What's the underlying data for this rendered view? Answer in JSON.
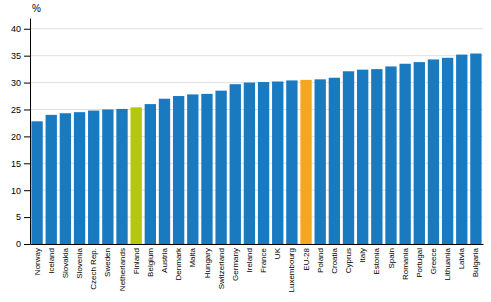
{
  "chart_data": {
    "type": "bar",
    "ylabel": "%",
    "categories": [
      "Norway",
      "Iceland",
      "Slovakia",
      "Slovenia",
      "Czech Rep.",
      "Sweden",
      "Netherlands",
      "Finland",
      "Belgium",
      "Austria",
      "Denmark",
      "Malta",
      "Hungary",
      "Switzerland",
      "Germany",
      "Ireland",
      "France",
      "UK",
      "Luxembourg",
      "EU-28",
      "Poland",
      "Croatia",
      "Cyprus",
      "Italy",
      "Estonia",
      "Spain",
      "Romania",
      "Portugal",
      "Greece",
      "Lithuania",
      "Latvia",
      "Bulgaria"
    ],
    "values": [
      22.8,
      24.0,
      24.3,
      24.5,
      24.8,
      25.0,
      25.1,
      25.4,
      26.0,
      27.0,
      27.5,
      27.8,
      27.9,
      28.5,
      29.7,
      30.0,
      30.1,
      30.2,
      30.4,
      30.5,
      30.6,
      30.9,
      32.1,
      32.4,
      32.5,
      33.0,
      33.5,
      33.8,
      34.3,
      34.6,
      35.2,
      35.4
    ],
    "colors": [
      "#1a7abf",
      "#1a7abf",
      "#1a7abf",
      "#1a7abf",
      "#1a7abf",
      "#1a7abf",
      "#1a7abf",
      "#b5c811",
      "#1a7abf",
      "#1a7abf",
      "#1a7abf",
      "#1a7abf",
      "#1a7abf",
      "#1a7abf",
      "#1a7abf",
      "#1a7abf",
      "#1a7abf",
      "#1a7abf",
      "#1a7abf",
      "#f5a623",
      "#1a7abf",
      "#1a7abf",
      "#1a7abf",
      "#1a7abf",
      "#1a7abf",
      "#1a7abf",
      "#1a7abf",
      "#1a7abf",
      "#1a7abf",
      "#1a7abf",
      "#1a7abf",
      "#1a7abf"
    ],
    "ylim": [
      0,
      42
    ],
    "yticks": [
      0,
      5,
      10,
      15,
      20,
      25,
      30,
      35,
      40
    ],
    "grid": true
  }
}
